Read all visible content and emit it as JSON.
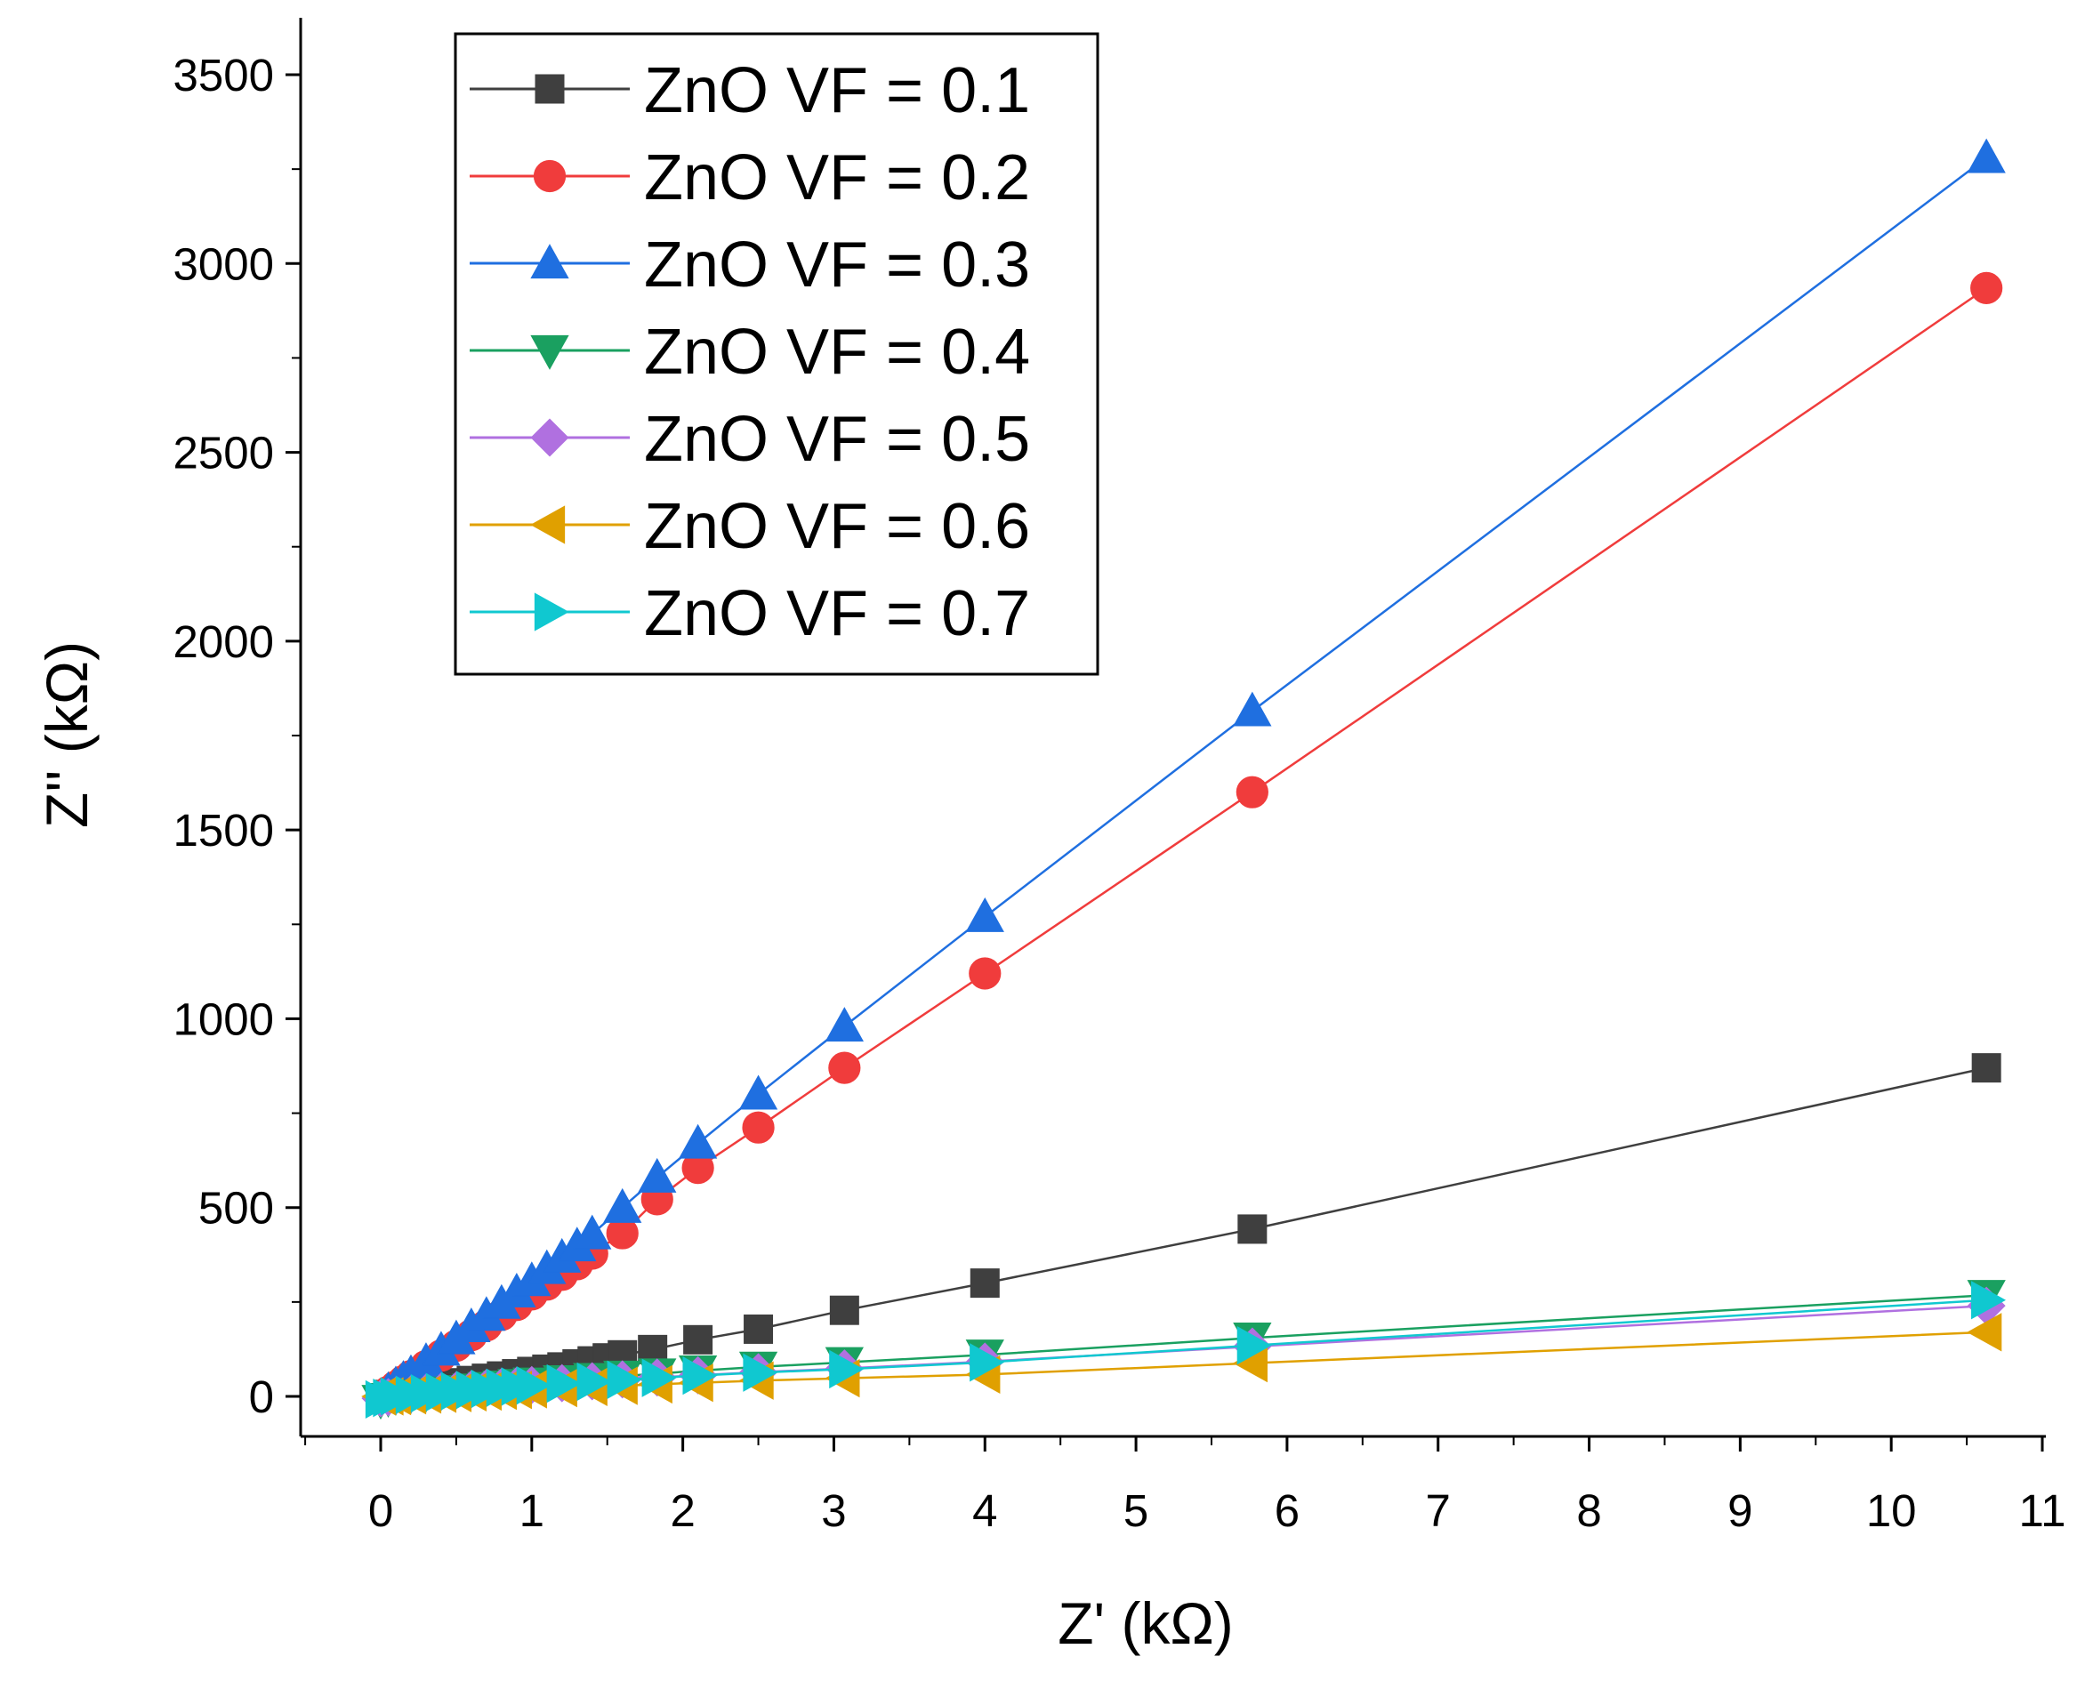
{
  "chart_data": {
    "type": "line",
    "title": "",
    "xlabel": "Z' (kΩ)",
    "ylabel": "Z'' (kΩ)",
    "xlim": [
      -0.5,
      11
    ],
    "ylim": [
      -100,
      3500
    ],
    "xticks": [
      0,
      1,
      2,
      3,
      4,
      5,
      6,
      7,
      8,
      9,
      10,
      11
    ],
    "xtick_labels": [
      "0",
      "1",
      "2",
      "3",
      "4",
      "5",
      "6",
      "7",
      "8",
      "9",
      "10",
      "11"
    ],
    "yticks": [
      0,
      500,
      1000,
      1500,
      2000,
      2500,
      3000,
      3500
    ],
    "ytick_labels": [
      "0",
      "500",
      "1000",
      "1500",
      "2000",
      "2500",
      "3000",
      "3500"
    ],
    "grid": false,
    "legend_position": "top-left",
    "series": [
      {
        "name": "ZnO VF = 0.1",
        "color": "#3f3f3f",
        "marker": "square",
        "x": [
          0.05,
          0.1,
          0.15,
          0.2,
          0.3,
          0.4,
          0.5,
          0.6,
          0.7,
          0.8,
          0.9,
          1.0,
          1.1,
          1.2,
          1.3,
          1.4,
          1.5,
          1.6,
          1.8,
          2.1,
          2.5,
          3.07,
          4.0,
          5.77,
          10.63
        ],
        "y": [
          5,
          10,
          14,
          18,
          24,
          30,
          36,
          42,
          48,
          54,
          60,
          66,
          72,
          78,
          86,
          94,
          102,
          110,
          124,
          150,
          178,
          228,
          300,
          443,
          870
        ]
      },
      {
        "name": "ZnO VF = 0.2",
        "color": "#f03c3c",
        "marker": "circle",
        "x": [
          0.05,
          0.1,
          0.15,
          0.2,
          0.3,
          0.4,
          0.5,
          0.6,
          0.7,
          0.8,
          0.9,
          1.0,
          1.1,
          1.2,
          1.3,
          1.4,
          1.6,
          1.83,
          2.1,
          2.5,
          3.07,
          4.0,
          5.77,
          10.63
        ],
        "y": [
          12,
          26,
          40,
          54,
          80,
          108,
          134,
          162,
          188,
          216,
          242,
          270,
          296,
          322,
          350,
          378,
          432,
          522,
          605,
          712,
          870,
          1120,
          1600,
          2935
        ]
      },
      {
        "name": "ZnO VF = 0.3",
        "color": "#1f6fe0",
        "marker": "triangle-up",
        "x": [
          0.05,
          0.1,
          0.15,
          0.2,
          0.3,
          0.4,
          0.5,
          0.6,
          0.7,
          0.8,
          0.9,
          1.0,
          1.1,
          1.2,
          1.3,
          1.4,
          1.6,
          1.83,
          2.1,
          2.5,
          3.07,
          4.0,
          5.77,
          10.63
        ],
        "y": [
          15,
          30,
          45,
          60,
          92,
          122,
          152,
          184,
          214,
          246,
          276,
          306,
          338,
          368,
          398,
          430,
          500,
          580,
          670,
          800,
          980,
          1270,
          1815,
          3280
        ]
      },
      {
        "name": "ZnO VF = 0.4",
        "color": "#1aa060",
        "marker": "triangle-down",
        "x": [
          0.0,
          0.05,
          0.1,
          0.2,
          0.3,
          0.4,
          0.5,
          0.6,
          0.7,
          0.8,
          0.9,
          1.0,
          1.2,
          1.4,
          1.6,
          1.83,
          2.1,
          2.5,
          3.07,
          4.0,
          5.77,
          10.63
        ],
        "y": [
          -10,
          -5,
          0,
          4,
          8,
          12,
          16,
          20,
          24,
          28,
          32,
          36,
          42,
          48,
          54,
          60,
          68,
          78,
          90,
          110,
          155,
          268
        ]
      },
      {
        "name": "ZnO VF = 0.5",
        "color": "#b070e0",
        "marker": "diamond",
        "x": [
          0.0,
          0.05,
          0.1,
          0.2,
          0.3,
          0.4,
          0.5,
          0.6,
          0.7,
          0.8,
          0.9,
          1.0,
          1.2,
          1.4,
          1.6,
          1.83,
          2.1,
          2.5,
          3.07,
          4.0,
          5.77,
          10.63
        ],
        "y": [
          -5,
          -2,
          2,
          6,
          10,
          13,
          16,
          19,
          22,
          25,
          28,
          30,
          35,
          40,
          45,
          50,
          56,
          64,
          74,
          92,
          132,
          240
        ]
      },
      {
        "name": "ZnO VF = 0.6",
        "color": "#e0a000",
        "marker": "triangle-left",
        "x": [
          0.0,
          0.05,
          0.1,
          0.2,
          0.3,
          0.4,
          0.5,
          0.6,
          0.7,
          0.8,
          0.9,
          1.0,
          1.2,
          1.4,
          1.6,
          1.83,
          2.1,
          2.5,
          3.07,
          4.0,
          5.77,
          10.63
        ],
        "y": [
          0,
          0,
          1,
          3,
          5,
          7,
          9,
          11,
          13,
          15,
          17,
          19,
          22,
          25,
          28,
          32,
          36,
          42,
          48,
          58,
          88,
          170
        ]
      },
      {
        "name": "ZnO VF = 0.7",
        "color": "#10c8d0",
        "marker": "triangle-right",
        "x": [
          0.0,
          0.05,
          0.1,
          0.2,
          0.3,
          0.4,
          0.5,
          0.6,
          0.7,
          0.8,
          0.9,
          1.0,
          1.2,
          1.4,
          1.6,
          1.83,
          2.1,
          2.5,
          3.07,
          4.0,
          5.77,
          10.63
        ],
        "y": [
          -8,
          -4,
          0,
          4,
          8,
          11,
          14,
          17,
          20,
          23,
          26,
          29,
          34,
          39,
          44,
          49,
          55,
          63,
          72,
          90,
          135,
          255
        ]
      }
    ]
  }
}
